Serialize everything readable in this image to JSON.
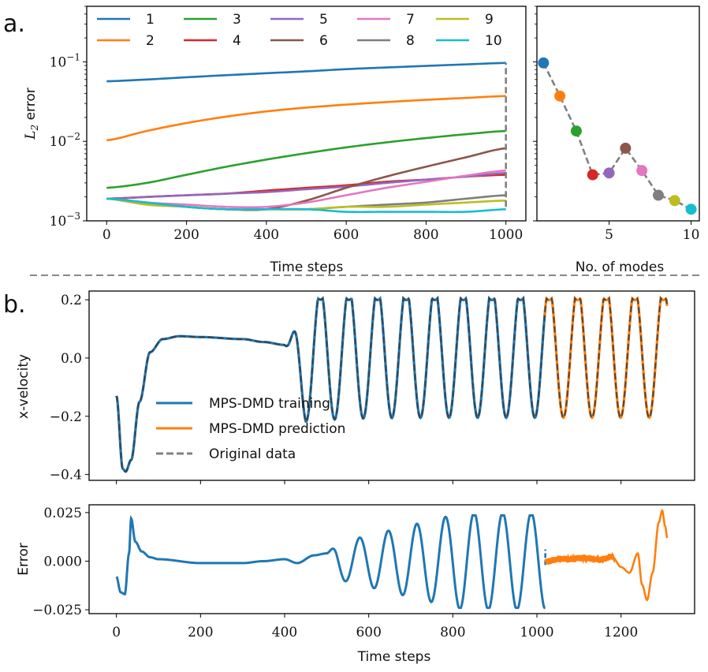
{
  "panel_labels": {
    "a": "a.",
    "b": "b."
  },
  "colors": {
    "modes": [
      "#1f77b4",
      "#ff7f0e",
      "#2ca02c",
      "#d62728",
      "#9467bd",
      "#8c564b",
      "#e377c2",
      "#7f7f7f",
      "#bcbd22",
      "#17becf"
    ],
    "training": "#1f77b4",
    "prediction": "#ff7f0e",
    "original": "#555555"
  },
  "chart_data": [
    {
      "id": "a_left",
      "type": "line",
      "title": "",
      "xlabel": "Time steps",
      "ylabel": "L2 error",
      "ylabel_main": "L",
      "ylabel_sub": "2",
      "ylabel_rest": " error",
      "yscale": "log",
      "xlim": [
        -50,
        1050
      ],
      "ylim": [
        0.001,
        0.5
      ],
      "xticks": [
        0,
        200,
        400,
        600,
        800,
        1000
      ],
      "xtick_labels": [
        "0",
        "200",
        "400",
        "600",
        "800",
        "1000"
      ],
      "yticks": [
        0.001,
        0.01,
        0.1
      ],
      "ytick_labels": [
        {
          "base": "10",
          "exp": "−3"
        },
        {
          "base": "10",
          "exp": "−2"
        },
        {
          "base": "10",
          "exp": "−1"
        }
      ],
      "x": [
        0,
        100,
        200,
        300,
        400,
        500,
        600,
        700,
        800,
        900,
        1000
      ],
      "series": [
        {
          "name": "1",
          "values": [
            0.057,
            0.06,
            0.064,
            0.068,
            0.072,
            0.076,
            0.081,
            0.085,
            0.089,
            0.093,
            0.097
          ]
        },
        {
          "name": "2",
          "values": [
            0.0103,
            0.0135,
            0.017,
            0.0205,
            0.0238,
            0.0266,
            0.029,
            0.0312,
            0.0333,
            0.0352,
            0.0372
          ]
        },
        {
          "name": "3",
          "values": [
            0.0026,
            0.003,
            0.0038,
            0.0048,
            0.0059,
            0.0071,
            0.0084,
            0.0097,
            0.011,
            0.0123,
            0.0135
          ]
        },
        {
          "name": "4",
          "values": [
            0.0019,
            0.002,
            0.0021,
            0.0022,
            0.0024,
            0.0026,
            0.0028,
            0.0031,
            0.0033,
            0.0036,
            0.0038
          ]
        },
        {
          "name": "5",
          "values": [
            0.0019,
            0.002,
            0.0021,
            0.0022,
            0.0023,
            0.0025,
            0.0027,
            0.003,
            0.0033,
            0.0036,
            0.004
          ]
        },
        {
          "name": "6",
          "values": [
            0.0019,
            0.0017,
            0.0015,
            0.0014,
            0.0014,
            0.0018,
            0.0026,
            0.0036,
            0.0048,
            0.0063,
            0.0082
          ]
        },
        {
          "name": "7",
          "values": [
            0.0019,
            0.0017,
            0.0016,
            0.0015,
            0.0015,
            0.0017,
            0.0021,
            0.0026,
            0.0031,
            0.0037,
            0.0043
          ]
        },
        {
          "name": "8",
          "values": [
            0.0019,
            0.0017,
            0.0015,
            0.0014,
            0.0014,
            0.0014,
            0.0015,
            0.0016,
            0.0017,
            0.0019,
            0.0021
          ]
        },
        {
          "name": "9",
          "values": [
            0.0019,
            0.0016,
            0.0015,
            0.0014,
            0.0014,
            0.0014,
            0.0015,
            0.0015,
            0.0016,
            0.0017,
            0.0018
          ]
        },
        {
          "name": "10",
          "values": [
            0.0019,
            0.0017,
            0.0015,
            0.0014,
            0.0014,
            0.0014,
            0.0013,
            0.0013,
            0.0013,
            0.0013,
            0.0014
          ]
        }
      ],
      "vline": {
        "x": 1000,
        "y_from": 0.0015,
        "y_to": 0.097,
        "style": "dashed"
      },
      "legend": {
        "placement": "top",
        "ncol": 5,
        "entries": [
          "1",
          "2",
          "3",
          "4",
          "5",
          "6",
          "7",
          "8",
          "9",
          "10"
        ]
      }
    },
    {
      "id": "a_right",
      "type": "scatter",
      "xlabel": "No. of modes",
      "ylabel": "",
      "yscale": "log",
      "xlim": [
        0.6,
        10.5
      ],
      "ylim": [
        0.001,
        0.5
      ],
      "xticks": [
        5,
        10
      ],
      "xtick_labels": [
        "5",
        "10"
      ],
      "x": [
        1,
        2,
        3,
        4,
        5,
        6,
        7,
        8,
        9,
        10
      ],
      "values": [
        0.097,
        0.0372,
        0.0135,
        0.0038,
        0.004,
        0.0082,
        0.0043,
        0.0021,
        0.0018,
        0.0014
      ],
      "line_style": "dashed"
    },
    {
      "id": "b_top",
      "type": "line",
      "xlabel": "",
      "ylabel": "x-velocity",
      "xlim": [
        -65,
        1375
      ],
      "ylim": [
        -0.42,
        0.23
      ],
      "yticks": [
        -0.4,
        -0.2,
        0.0,
        0.2
      ],
      "ytick_labels": [
        "−0.4",
        "−0.2",
        "0.0",
        "0.2"
      ],
      "xticks": [
        0,
        200,
        400,
        600,
        800,
        1000,
        1200
      ],
      "train_end": 1020,
      "pred_end": 1310,
      "model": {
        "keyframes": [
          [
            0,
            -0.13
          ],
          [
            15,
            -0.38
          ],
          [
            22,
            -0.39
          ],
          [
            35,
            -0.35
          ],
          [
            55,
            -0.15
          ],
          [
            80,
            0.02
          ],
          [
            110,
            0.065
          ],
          [
            150,
            0.075
          ],
          [
            200,
            0.072
          ],
          [
            300,
            0.065
          ],
          [
            350,
            0.055
          ],
          [
            400,
            0.045
          ]
        ],
        "osc_start": 400,
        "osc_base": 0.02,
        "period": 68,
        "amp_start": 0.035,
        "amp_growth": 0.0038,
        "amp_max": 0.225
      },
      "legend": {
        "placement": "lower-left",
        "entries": [
          "MPS-DMD training",
          "MPS-DMD prediction",
          "Original data"
        ]
      }
    },
    {
      "id": "b_bottom",
      "type": "line",
      "xlabel": "Time steps",
      "ylabel": "Error",
      "xlim": [
        -65,
        1375
      ],
      "ylim": [
        -0.027,
        0.029
      ],
      "yticks": [
        -0.025,
        0.0,
        0.025
      ],
      "ytick_labels": [
        "−0.025",
        "0.000",
        "0.025"
      ],
      "xticks": [
        0,
        200,
        400,
        600,
        800,
        1000,
        1200
      ],
      "xtick_labels": [
        "0",
        "200",
        "400",
        "600",
        "800",
        "1000",
        "1200"
      ],
      "train_keyframes": [
        [
          0,
          -0.008
        ],
        [
          10,
          -0.016
        ],
        [
          20,
          -0.017
        ],
        [
          30,
          0.004
        ],
        [
          35,
          0.022
        ],
        [
          45,
          0.01
        ],
        [
          60,
          0.005
        ],
        [
          80,
          0.002
        ],
        [
          100,
          0.001
        ],
        [
          200,
          -0.001
        ],
        [
          300,
          -0.001
        ],
        [
          350,
          0.0
        ],
        [
          400,
          0.001
        ],
        [
          430,
          -0.001
        ],
        [
          470,
          0.003
        ],
        [
          500,
          0.004
        ]
      ],
      "train_osc": {
        "start": 500,
        "end": 1020,
        "amp_start": 0.008,
        "amp_max": 0.025,
        "period": 68
      },
      "pred_keyframes": [
        [
          1020,
          0.0
        ],
        [
          1060,
          0.001
        ],
        [
          1100,
          0.0015
        ],
        [
          1150,
          0.001
        ],
        [
          1180,
          0.002
        ],
        [
          1200,
          -0.003
        ],
        [
          1220,
          -0.006
        ],
        [
          1240,
          0.004
        ],
        [
          1250,
          -0.012
        ],
        [
          1262,
          -0.02
        ],
        [
          1275,
          -0.006
        ],
        [
          1290,
          0.02
        ],
        [
          1298,
          0.026
        ],
        [
          1305,
          0.018
        ],
        [
          1310,
          0.012
        ]
      ],
      "vline": {
        "x": 1020,
        "y_from": -0.002,
        "y_to": 0.006,
        "style": "dashed"
      }
    }
  ]
}
